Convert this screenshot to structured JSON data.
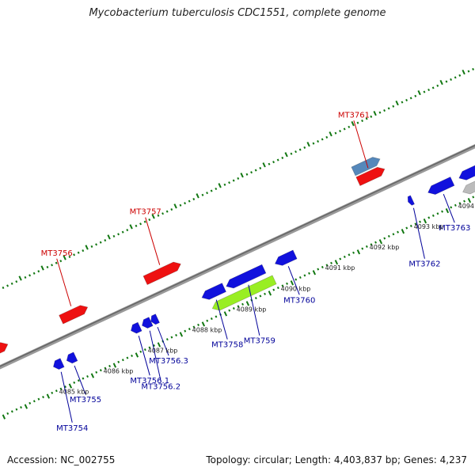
{
  "title": "Mycobacterium tuberculosis CDC1551, complete genome",
  "footer": {
    "accession": "Accession: NC_002755",
    "summary": "Topology: circular; Length: 4,403,837 bp; Genes: 4,237"
  },
  "colors": {
    "forward_gene": "#ee1111",
    "reverse_gene": "#1111dd",
    "highlight_gene": "#99ee22",
    "steelblue_gene": "#5588bb",
    "grey_gene": "#bbbbbb",
    "backbone": "#777777",
    "tick": "#117711",
    "forward_label": "#cc0000",
    "reverse_label": "#000099"
  },
  "scale": {
    "ticks": [
      {
        "label": "4085 kbp",
        "pos": 4085
      },
      {
        "label": "4086 kbp",
        "pos": 4086
      },
      {
        "label": "4087 kbp",
        "pos": 4087
      },
      {
        "label": "4088 kbp",
        "pos": 4088
      },
      {
        "label": "4089 kbp",
        "pos": 4089
      },
      {
        "label": "4090 kbp",
        "pos": 4090
      },
      {
        "label": "4091 kbp",
        "pos": 4091
      },
      {
        "label": "4092 kbp",
        "pos": 4092
      },
      {
        "label": "4093 kbp",
        "pos": 4093
      },
      {
        "label": "4094 kbp",
        "pos": 4094
      }
    ]
  },
  "genes": [
    {
      "id": "g1",
      "strand": "forward",
      "start": 4083.6,
      "end": 4084.2,
      "color": "forward_gene"
    },
    {
      "id": "g2",
      "strand": "forward",
      "label": "MT3756",
      "start": 4085.4,
      "end": 4086.0,
      "color": "forward_gene"
    },
    {
      "id": "g3",
      "strand": "forward",
      "label": "MT3757",
      "start": 4087.3,
      "end": 4088.1,
      "color": "forward_gene"
    },
    {
      "id": "g4",
      "strand": "forward",
      "label": "MT3761",
      "start": 4092.1,
      "end": 4092.7,
      "color": "forward_gene"
    },
    {
      "id": "g5",
      "strand": "forward",
      "start": 4092.1,
      "end": 4092.7,
      "color": "steelblue_gene",
      "outer": true
    },
    {
      "id": "g6",
      "strand": "reverse",
      "label": "MT3754",
      "start": 4084.85,
      "end": 4085.05,
      "color": "reverse_gene"
    },
    {
      "id": "g7",
      "strand": "reverse",
      "label": "MT3755",
      "start": 4085.15,
      "end": 4085.35,
      "color": "reverse_gene"
    },
    {
      "id": "g8",
      "strand": "reverse",
      "label": "MT3756.1",
      "start": 4086.6,
      "end": 4086.8,
      "color": "reverse_gene"
    },
    {
      "id": "g9",
      "strand": "reverse",
      "label": "MT3756.2",
      "start": 4086.85,
      "end": 4087.05,
      "color": "reverse_gene"
    },
    {
      "id": "g10",
      "strand": "reverse",
      "label": "MT3756.3",
      "start": 4087.05,
      "end": 4087.2,
      "color": "reverse_gene"
    },
    {
      "id": "g11",
      "strand": "reverse",
      "label": "MT3758",
      "start": 4088.2,
      "end": 4088.7,
      "color": "reverse_gene"
    },
    {
      "id": "g12",
      "strand": "reverse",
      "label": "MT3759",
      "start": 4088.75,
      "end": 4089.6,
      "color": "reverse_gene"
    },
    {
      "id": "g13",
      "strand": "reverse",
      "label": "MT3760",
      "start": 4089.85,
      "end": 4090.3,
      "color": "reverse_gene"
    },
    {
      "id": "g14",
      "strand": "reverse",
      "start": 4088.3,
      "end": 4089.7,
      "color": "highlight_gene",
      "outer": true
    },
    {
      "id": "g15",
      "strand": "reverse",
      "label": "MT3762",
      "start": 4092.85,
      "end": 4092.95,
      "color": "reverse_gene"
    },
    {
      "id": "g16",
      "strand": "reverse",
      "label": "MT3763",
      "start": 4093.3,
      "end": 4093.85,
      "color": "reverse_gene"
    },
    {
      "id": "g17",
      "strand": "reverse",
      "start": 4094.0,
      "end": 4094.6,
      "color": "reverse_gene"
    },
    {
      "id": "g18",
      "strand": "reverse",
      "start": 4093.95,
      "end": 4094.6,
      "color": "grey_gene",
      "outer": true
    }
  ]
}
